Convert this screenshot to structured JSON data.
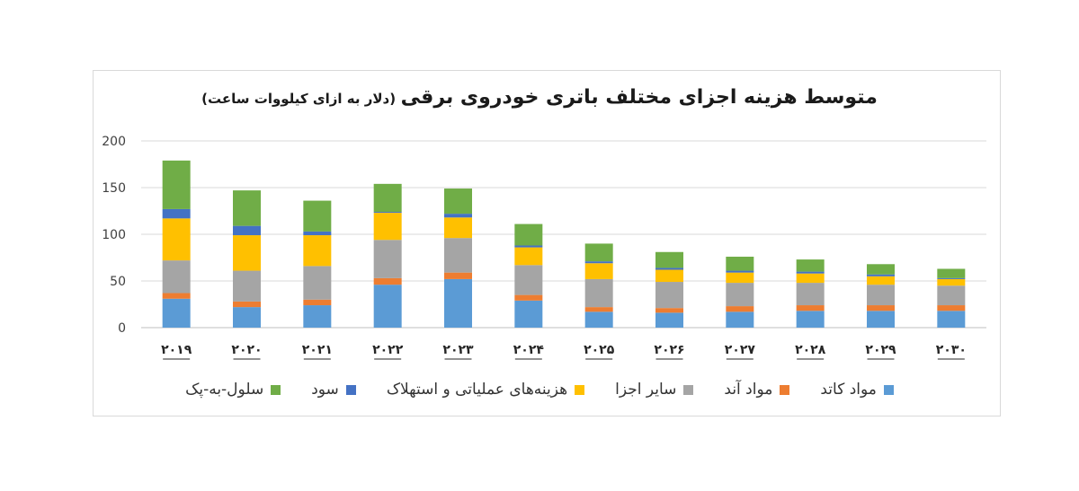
{
  "chart_data": {
    "type": "bar",
    "stacked": true,
    "title": "متوسط هزینه اجزای مختلف باتری خودروی برقی",
    "subtitle": "(دلار به ازای کیلووات ساعت)",
    "categories": [
      "۲۰۱۹",
      "۲۰۲۰",
      "۲۰۲۱",
      "۲۰۲۲",
      "۲۰۲۳",
      "۲۰۲۴",
      "۲۰۲۵",
      "۲۰۲۶",
      "۲۰۲۷",
      "۲۰۲۸",
      "۲۰۲۹",
      "۲۰۳۰"
    ],
    "ylim": [
      0,
      200
    ],
    "yticks": [
      0,
      50,
      100,
      150,
      200
    ],
    "grid": true,
    "legend_position": "bottom",
    "series": [
      {
        "name": "مواد کاتد",
        "color": "#5b9bd5",
        "values": [
          31,
          22,
          24,
          46,
          52,
          29,
          17,
          16,
          17,
          18,
          18,
          18
        ]
      },
      {
        "name": "مواد آند",
        "color": "#ed7d31",
        "values": [
          6,
          6,
          6,
          7,
          7,
          6,
          5,
          5,
          6,
          6,
          6,
          6
        ]
      },
      {
        "name": "سایر اجزا",
        "color": "#a5a5a5",
        "values": [
          35,
          33,
          36,
          41,
          37,
          32,
          30,
          28,
          25,
          24,
          22,
          21
        ]
      },
      {
        "name": "هزینه‌های عملیاتی و استهلاک",
        "color": "#ffc000",
        "values": [
          45,
          38,
          33,
          29,
          22,
          19,
          17,
          13,
          11,
          10,
          9,
          7
        ]
      },
      {
        "name": "سود",
        "color": "#4472c4",
        "values": [
          10,
          10,
          4,
          1,
          4,
          2,
          2,
          2,
          2,
          2,
          2,
          1
        ]
      },
      {
        "name": "سلول-به-پک",
        "color": "#70ad47",
        "values": [
          52,
          38,
          33,
          30,
          27,
          23,
          19,
          17,
          15,
          13,
          11,
          10
        ]
      }
    ]
  }
}
